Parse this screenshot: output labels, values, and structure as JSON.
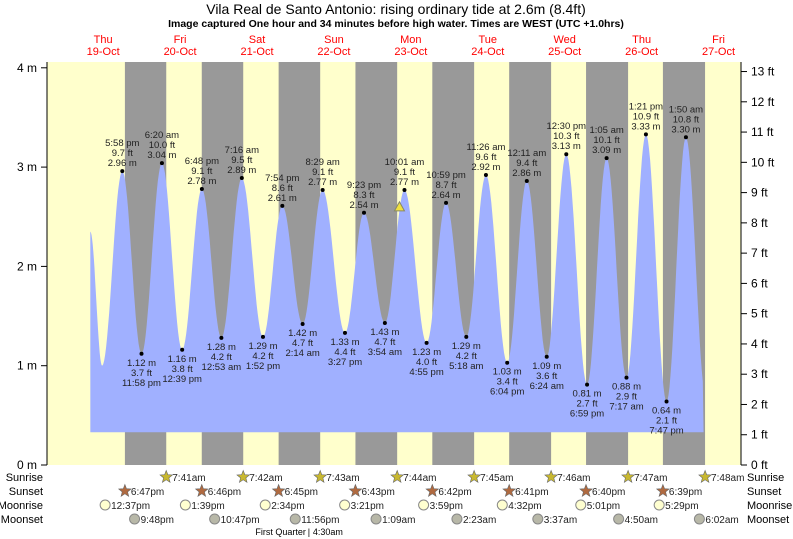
{
  "chart_data": {
    "type": "area",
    "title": "Vila Real de Santo Antonio: rising  ordinary tide at 2.6m (8.4ft)",
    "subtitle": "Image captured One hour and 34 minutes before high water. Times are WEST (UTC +1.0hrs)",
    "ylabel_left_unit": "m",
    "ylabel_right_unit": "ft",
    "ylim_m": [
      0,
      4
    ],
    "yticks_m": [
      0,
      1,
      2,
      3,
      4
    ],
    "yticks_ft": [
      0,
      1,
      2,
      3,
      4,
      5,
      6,
      7,
      8,
      9,
      10,
      11,
      12,
      13
    ],
    "days": [
      {
        "dow": "Thu",
        "date": "19-Oct"
      },
      {
        "dow": "Fri",
        "date": "20-Oct"
      },
      {
        "dow": "Sat",
        "date": "21-Oct"
      },
      {
        "dow": "Sun",
        "date": "22-Oct"
      },
      {
        "dow": "Mon",
        "date": "23-Oct"
      },
      {
        "dow": "Tue",
        "date": "24-Oct"
      },
      {
        "dow": "Wed",
        "date": "25-Oct"
      },
      {
        "dow": "Thu",
        "date": "26-Oct"
      },
      {
        "dow": "Fri",
        "date": "27-Oct"
      }
    ],
    "curve_start": {
      "day": 0,
      "time": "8:00 am",
      "m": 2.35
    },
    "curve_unlabeled_low": {
      "day": 0,
      "time": "11:40 am",
      "m": 1.0
    },
    "curve_end": {
      "day": 8,
      "time": "7:20 am",
      "m": 1.4
    },
    "extremes": [
      {
        "type": "high",
        "day": 0,
        "time": "5:58 pm",
        "ft": "9.7 ft",
        "m": 2.96
      },
      {
        "type": "low",
        "day": 0,
        "time": "11:58 pm",
        "ft": "3.7 ft",
        "m": 1.12
      },
      {
        "type": "high",
        "day": 1,
        "time": "6:20 am",
        "ft": "10.0 ft",
        "m": 3.04
      },
      {
        "type": "low",
        "day": 1,
        "time": "12:39 pm",
        "ft": "3.8 ft",
        "m": 1.16
      },
      {
        "type": "high",
        "day": 1,
        "time": "6:48 pm",
        "ft": "9.1 ft",
        "m": 2.78
      },
      {
        "type": "low",
        "day": 2,
        "time": "12:53 am",
        "ft": "4.2 ft",
        "m": 1.28
      },
      {
        "type": "high",
        "day": 2,
        "time": "7:16 am",
        "ft": "9.5 ft",
        "m": 2.89
      },
      {
        "type": "low",
        "day": 2,
        "time": "1:52 pm",
        "ft": "4.2 ft",
        "m": 1.29
      },
      {
        "type": "high",
        "day": 2,
        "time": "7:54 pm",
        "ft": "8.6 ft",
        "m": 2.61
      },
      {
        "type": "low",
        "day": 3,
        "time": "2:14 am",
        "ft": "4.7 ft",
        "m": 1.42
      },
      {
        "type": "high",
        "day": 3,
        "time": "8:29 am",
        "ft": "9.1 ft",
        "m": 2.77
      },
      {
        "type": "low",
        "day": 3,
        "time": "3:27 pm",
        "ft": "4.4 ft",
        "m": 1.33
      },
      {
        "type": "high",
        "day": 3,
        "time": "9:23 pm",
        "ft": "8.3 ft",
        "m": 2.54
      },
      {
        "type": "low",
        "day": 4,
        "time": "3:54 am",
        "ft": "4.7 ft",
        "m": 1.43
      },
      {
        "type": "high",
        "day": 4,
        "time": "10:01 am",
        "ft": "9.1 ft",
        "m": 2.77
      },
      {
        "type": "low",
        "day": 4,
        "time": "4:55 pm",
        "ft": "4.0 ft",
        "m": 1.23
      },
      {
        "type": "high",
        "day": 4,
        "time": "10:59 pm",
        "ft": "8.7 ft",
        "m": 2.64
      },
      {
        "type": "low",
        "day": 5,
        "time": "5:18 am",
        "ft": "4.2 ft",
        "m": 1.29
      },
      {
        "type": "high",
        "day": 5,
        "time": "11:26 am",
        "ft": "9.6 ft",
        "m": 2.92
      },
      {
        "type": "low",
        "day": 5,
        "time": "6:04 pm",
        "ft": "3.4 ft",
        "m": 1.03
      },
      {
        "type": "high",
        "day": 6,
        "time": "12:11 am",
        "ft": "9.4 ft",
        "m": 2.86
      },
      {
        "type": "low",
        "day": 6,
        "time": "6:24 am",
        "ft": "3.6 ft",
        "m": 1.09
      },
      {
        "type": "high",
        "day": 6,
        "time": "12:30 pm",
        "ft": "10.3 ft",
        "m": 3.13
      },
      {
        "type": "low",
        "day": 6,
        "time": "6:59 pm",
        "ft": "2.7 ft",
        "m": 0.81
      },
      {
        "type": "high",
        "day": 7,
        "time": "1:05 am",
        "ft": "10.1 ft",
        "m": 3.09
      },
      {
        "type": "low",
        "day": 7,
        "time": "7:17 am",
        "ft": "2.9 ft",
        "m": 0.88
      },
      {
        "type": "high",
        "day": 7,
        "time": "1:21 pm",
        "ft": "10.9 ft",
        "m": 3.33
      },
      {
        "type": "low",
        "day": 7,
        "time": "7:47 pm",
        "ft": "2.1 ft",
        "m": 0.64
      },
      {
        "type": "high",
        "day": 8,
        "time": "1:50 am",
        "ft": "10.8 ft",
        "m": 3.3
      }
    ],
    "current": {
      "day": 4,
      "time": "8:27 am",
      "m": 2.6
    },
    "rows": {
      "sunrise": {
        "label": "Sunrise",
        "events": [
          {
            "day": 1,
            "time": "7:41am"
          },
          {
            "day": 2,
            "time": "7:42am"
          },
          {
            "day": 3,
            "time": "7:43am"
          },
          {
            "day": 4,
            "time": "7:44am"
          },
          {
            "day": 5,
            "time": "7:45am"
          },
          {
            "day": 6,
            "time": "7:46am"
          },
          {
            "day": 7,
            "time": "7:47am"
          },
          {
            "day": 8,
            "time": "7:48am"
          }
        ]
      },
      "sunset": {
        "label": "Sunset",
        "events": [
          {
            "day": 0,
            "time": "6:47pm"
          },
          {
            "day": 1,
            "time": "6:46pm"
          },
          {
            "day": 2,
            "time": "6:45pm"
          },
          {
            "day": 3,
            "time": "6:43pm"
          },
          {
            "day": 4,
            "time": "6:42pm"
          },
          {
            "day": 5,
            "time": "6:41pm"
          },
          {
            "day": 6,
            "time": "6:40pm"
          },
          {
            "day": 7,
            "time": "6:39pm"
          }
        ]
      },
      "moonrise": {
        "label": "Moonrise",
        "events": [
          {
            "day": 0,
            "time": "12:37pm"
          },
          {
            "day": 1,
            "time": "1:39pm"
          },
          {
            "day": 2,
            "time": "2:34pm"
          },
          {
            "day": 3,
            "time": "3:21pm"
          },
          {
            "day": 4,
            "time": "3:59pm"
          },
          {
            "day": 5,
            "time": "4:32pm"
          },
          {
            "day": 6,
            "time": "5:01pm"
          },
          {
            "day": 7,
            "time": "5:29pm"
          }
        ]
      },
      "moonset": {
        "label": "Moonset",
        "events": [
          {
            "day": 0,
            "time": "9:48pm"
          },
          {
            "day": 1,
            "time": "10:47pm"
          },
          {
            "day": 2,
            "time": "11:56pm"
          },
          {
            "day": 4,
            "time": "1:09am"
          },
          {
            "day": 5,
            "time": "2:23am"
          },
          {
            "day": 6,
            "time": "3:37am"
          },
          {
            "day": 7,
            "time": "4:50am"
          },
          {
            "day": 8,
            "time": "6:02am"
          }
        ]
      }
    },
    "moon_phase": {
      "label": "First Quarter",
      "day": 3,
      "time": "4:30am"
    },
    "colors": {
      "day": "#ffffcc",
      "night": "#999999",
      "water": "#a0b0ff",
      "day_label": "#ff0000",
      "sunrise": "#c8b830",
      "sunset": "#b06a40",
      "moonrise": "#ffffd0",
      "moonset": "#b8b8a8",
      "marker": "#f0e040"
    }
  }
}
